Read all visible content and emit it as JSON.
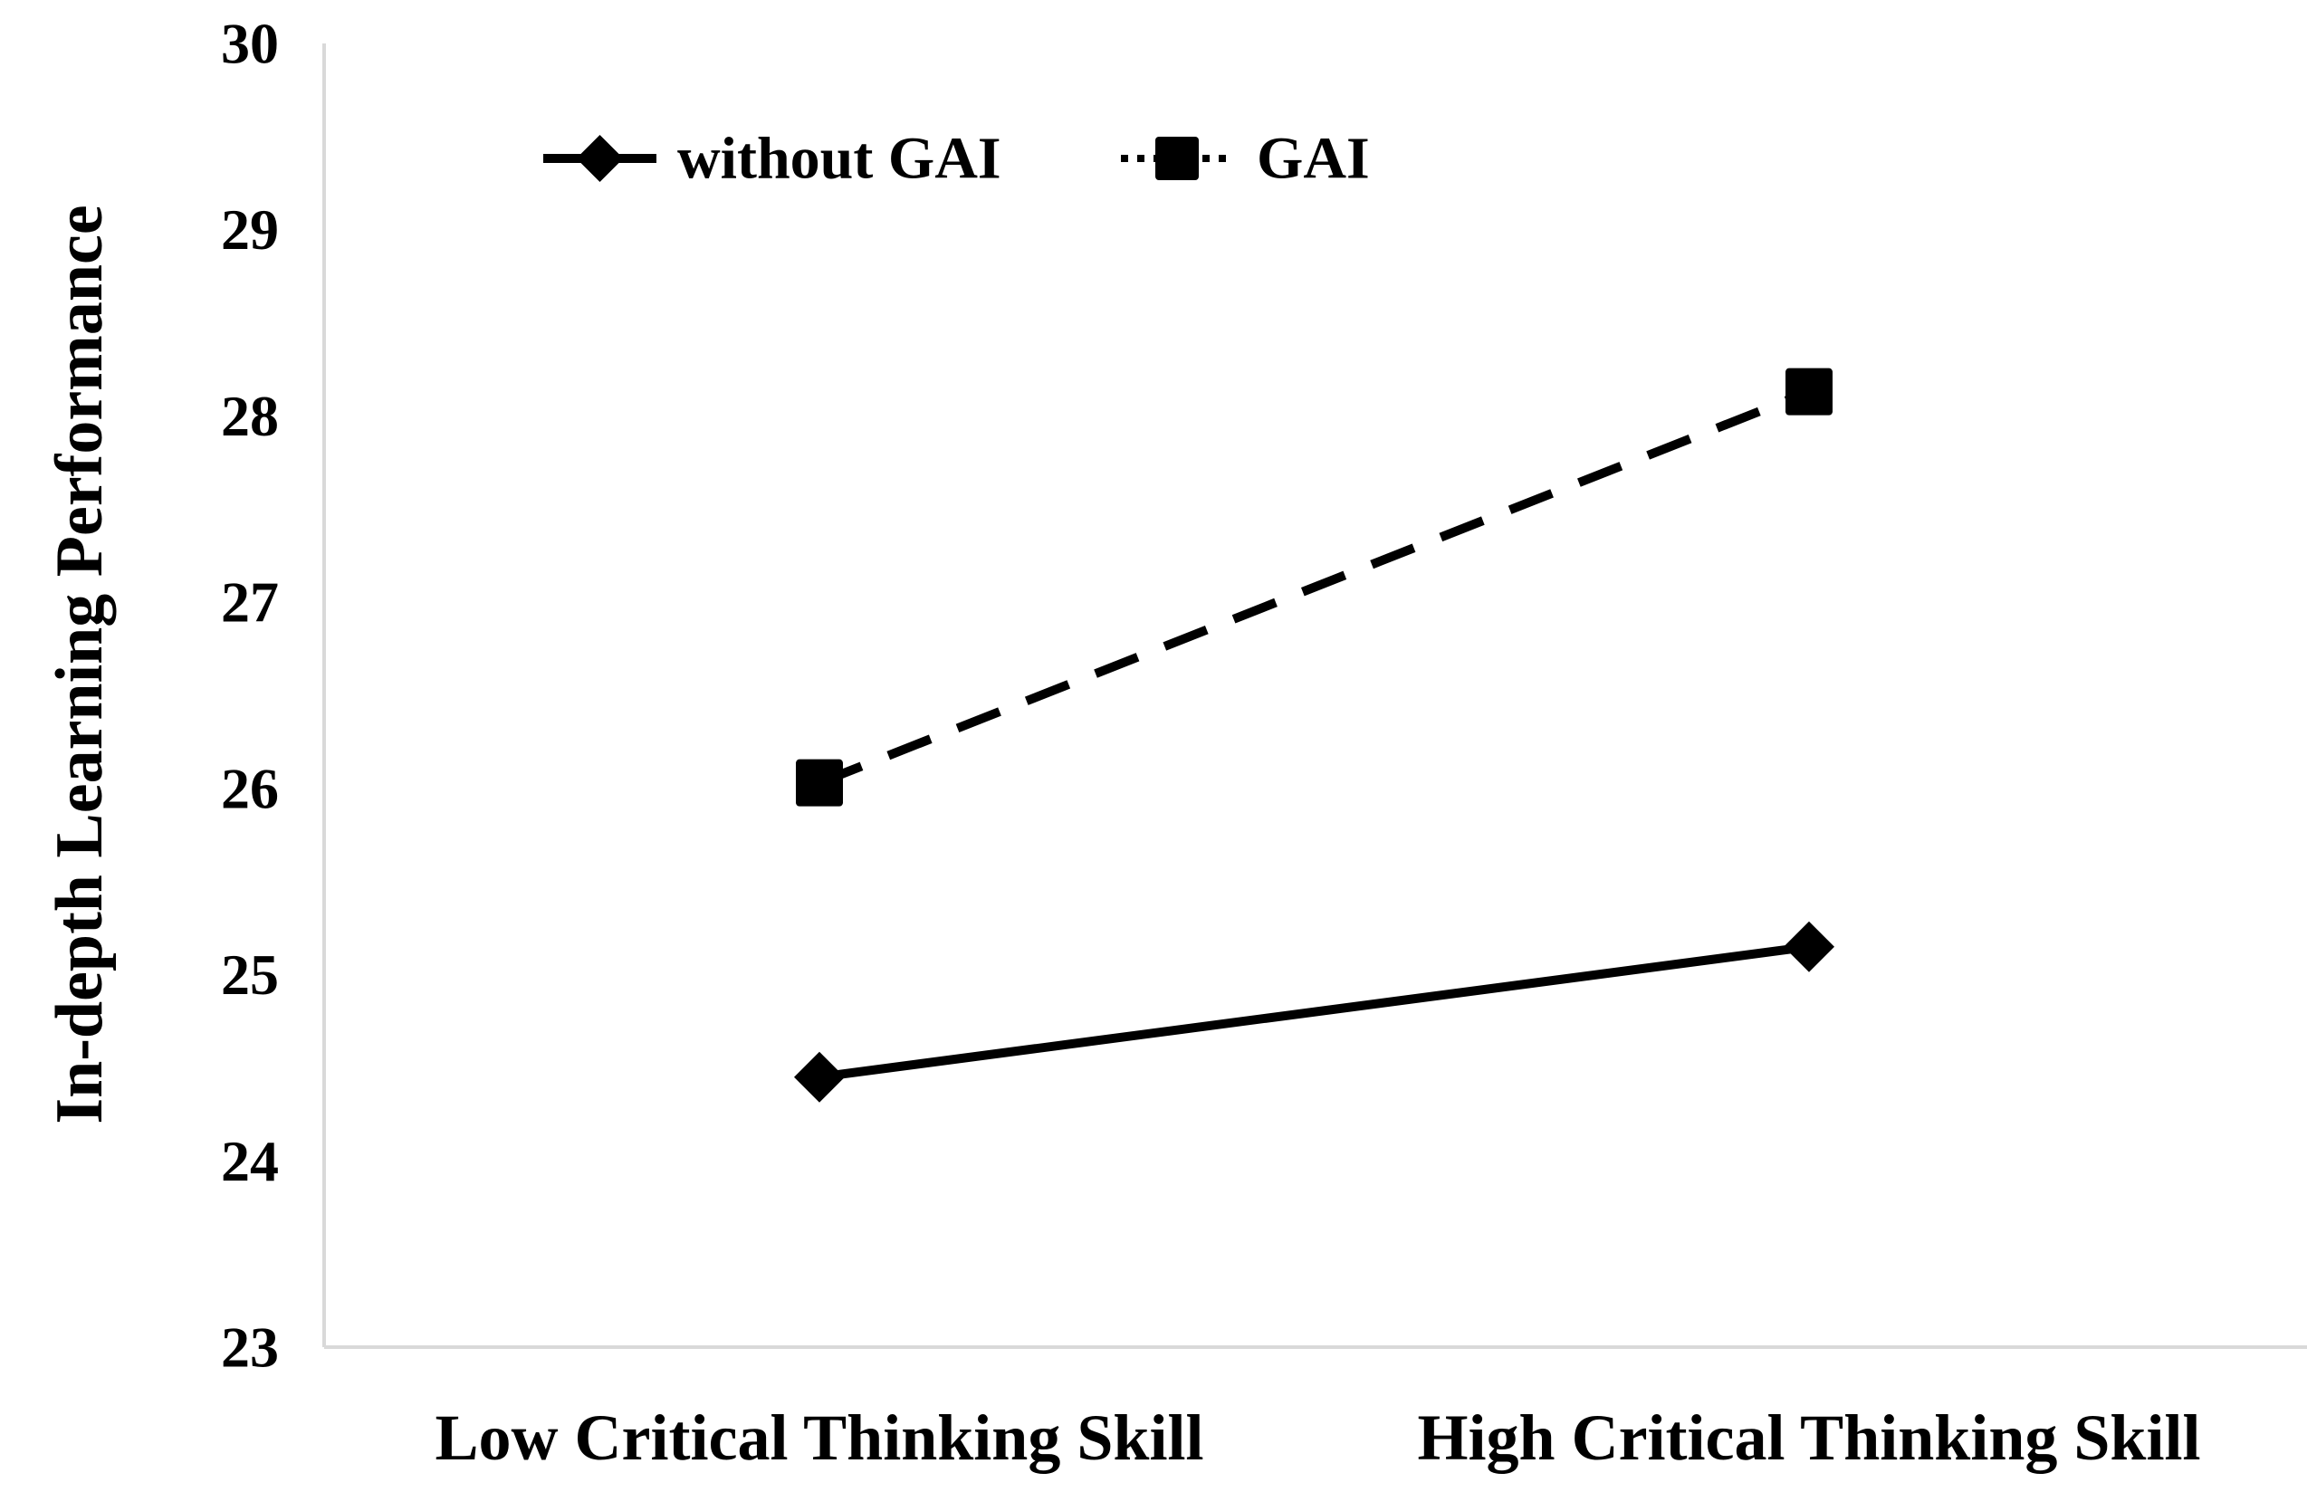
{
  "chart_data": {
    "type": "line",
    "title": "",
    "xlabel": "",
    "ylabel": "In-depth Learning Performance",
    "categories": [
      "Low Critical Thinking Skill",
      "High Critical Thinking Skill"
    ],
    "ylim": [
      23,
      30
    ],
    "yticks": [
      "23",
      "24",
      "25",
      "26",
      "27",
      "28",
      "29",
      "30"
    ],
    "grid": false,
    "legend_position": "top-left",
    "series": [
      {
        "name": "without GAI",
        "values": [
          24.45,
          25.15
        ],
        "line_style": "solid",
        "marker": "diamond",
        "color": "#000000"
      },
      {
        "name": "GAI",
        "values": [
          26.03,
          28.13
        ],
        "line_style": "dashed",
        "marker": "square",
        "color": "#000000"
      }
    ]
  }
}
